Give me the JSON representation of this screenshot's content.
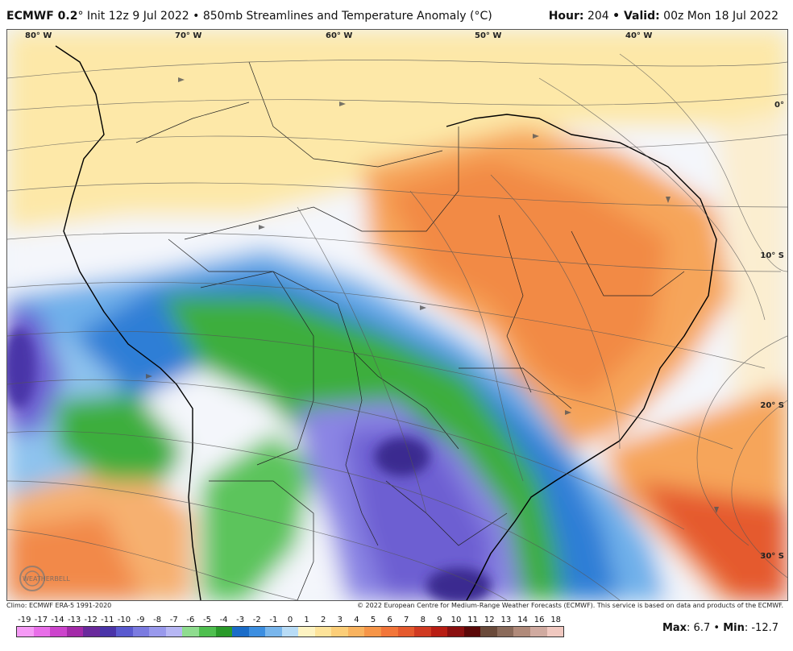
{
  "header": {
    "model": "ECMWF 0.2",
    "init": "° Init 12z 9 Jul 2022",
    "product": "• 850mb Streamlines and Temperature Anomaly (°C)",
    "hour_label": "Hour:",
    "hour_value": "204",
    "valid_label": "• Valid:",
    "valid_value": "00z Mon 18 Jul 2022"
  },
  "map": {
    "lon_labels": [
      "80° W",
      "70° W",
      "60° W",
      "50° W",
      "40° W"
    ],
    "lat_labels": [
      "0°",
      "10° S",
      "20° S",
      "30° S"
    ],
    "logo_text": "WEATHERBELL"
  },
  "footer": {
    "climo": "Climo: ECMWF ERA-5 1991-2020",
    "copyright": "© 2022 European Centre for Medium-Range Weather Forecasts (ECMWF). This service is based on data and products of the ECMWF."
  },
  "colorbar": {
    "labels": [
      "-19",
      "-17",
      "-14",
      "-13",
      "-12",
      "-11",
      "-10",
      "-9",
      "-8",
      "-7",
      "-6",
      "-5",
      "-4",
      "-3",
      "-2",
      "-1",
      "0",
      "1",
      "2",
      "3",
      "4",
      "5",
      "6",
      "7",
      "8",
      "9",
      "10",
      "11",
      "12",
      "13",
      "14",
      "16",
      "18"
    ],
    "colors": [
      "#f59af5",
      "#e86ee8",
      "#cc44cc",
      "#a32aa8",
      "#6a2a9c",
      "#4a34a8",
      "#5a5acf",
      "#7b7be0",
      "#9999ec",
      "#b7b7f4",
      "#8fdc8f",
      "#4fbf4f",
      "#2a9a2a",
      "#1a6cc8",
      "#3c8ee0",
      "#79b6ec",
      "#b8dcf6",
      "#fdf3c2",
      "#fde39a",
      "#fcce78",
      "#f9b35f",
      "#f69548",
      "#f2763a",
      "#e55a2e",
      "#d03a22",
      "#b81e14",
      "#8a1010",
      "#5a0808",
      "#6a4a3a",
      "#8a6a5a",
      "#b08a7a",
      "#d0aaa0",
      "#f0c8c0"
    ]
  },
  "stats": {
    "max_label": "Max",
    "max_value": ": 6.7 •",
    "min_label": "Min",
    "min_value": ": -12.7"
  }
}
